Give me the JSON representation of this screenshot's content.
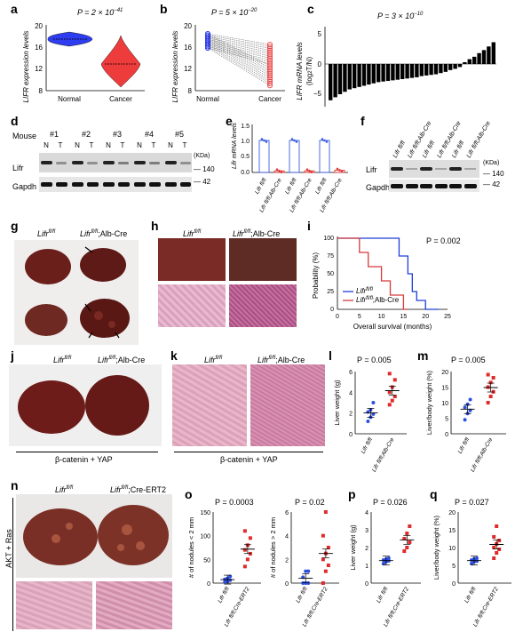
{
  "panels": {
    "a": {
      "label": "a",
      "pval": "P = 2 × 10",
      "pexp": "−41",
      "ylabel": "LIFR expression levels",
      "xticks": [
        "Normal",
        "Cancer"
      ],
      "yticks": [
        "8",
        "12",
        "16",
        "20"
      ]
    },
    "b": {
      "label": "b",
      "pval": "P = 5 × 10",
      "pexp": "−20",
      "ylabel": "LIFR expression levels",
      "xticks": [
        "Normal",
        "Cancer"
      ],
      "yticks": [
        "8",
        "12",
        "16",
        "20"
      ]
    },
    "c": {
      "label": "c",
      "pval": "P = 3 × 10",
      "pexp": "−10",
      "ylabel": "LIFR mRNA levels",
      "ylabel2": "(log",
      "ylabel2b": "2",
      "ylabel2c": "T/N)",
      "yticks": [
        "5",
        "0",
        "−5"
      ]
    },
    "d": {
      "label": "d",
      "mouse_label": "Mouse",
      "mice": [
        "#1",
        "#2",
        "#3",
        "#4",
        "#5"
      ],
      "lanes": [
        "N",
        "T",
        "N",
        "T",
        "N",
        "T",
        "N",
        "T",
        "N",
        "T"
      ],
      "rows": [
        "Lifr",
        "Gapdh"
      ],
      "kda": "(KDa)",
      "markers": [
        "140",
        "42"
      ]
    },
    "e": {
      "label": "e",
      "ylabel": "Lifr mRNA levels",
      "yticks": [
        "0.0",
        "0.5",
        "1.0",
        "1.5"
      ],
      "xticks": [
        "Lifr fl/fl",
        "Lifr fl/fl;Alb-Cre",
        "Lifr fl/fl",
        "Lifr fl/fl;Alb-Cre",
        "Lifr fl/fl",
        "Lifr fl/fl;Alb-Cre"
      ]
    },
    "f": {
      "label": "f",
      "lanes": [
        "Lifr fl/fl",
        "Lifr fl/fl;Alb-Cre",
        "Lifr fl/fl",
        "Lifr fl/fl;Alb-Cre",
        "Lifr fl/fl",
        "Lifr fl/fl;Alb-Cre"
      ],
      "rows": [
        "Lifr",
        "Gapdh"
      ],
      "kda": "(KDa)",
      "markers": [
        "140",
        "42"
      ]
    },
    "g": {
      "label": "g",
      "col1": "Lifr",
      "col1sup": "fl/fl",
      "col2": "Lifr",
      "col2sup": "fl/fl",
      "col2rest": ";Alb-Cre"
    },
    "h": {
      "label": "h",
      "col1": "Lifr",
      "col1sup": "fl/fl",
      "col2": "Lifr",
      "col2sup": "fl/fl",
      "col2rest": ";Alb-Cre"
    },
    "i": {
      "label": "i",
      "pval": "P = 0.002",
      "ylabel": "Probability (%)",
      "xlabel": "Overall survival (months)",
      "yticks": [
        "0",
        "25",
        "50",
        "75",
        "100"
      ],
      "xticks": [
        "0",
        "5",
        "10",
        "15",
        "20",
        "25"
      ],
      "legend": [
        {
          "name": "Lifr",
          "sup": "fl/fl",
          "color": "#1f3fd6"
        },
        {
          "name": "Lifr",
          "sup": "fl/fl",
          "rest": ";Alb-Cre",
          "color": "#d63a3a"
        }
      ]
    },
    "j": {
      "label": "j",
      "col1": "Lifr",
      "col1sup": "fl/fl",
      "col2": "Lifr",
      "col2sup": "fl/fl",
      "col2rest": ";Alb-Cre",
      "caption": "β-catenin + YAP"
    },
    "k": {
      "label": "k",
      "col1": "Lifr",
      "col1sup": "fl/fl",
      "col2": "Lifr",
      "col2sup": "fl/fl",
      "col2rest": ";Alb-Cre",
      "caption": "β-catenin + YAP"
    },
    "l": {
      "label": "l",
      "pval": "P = 0.005",
      "ylabel": "Liver weight (g)",
      "yticks": [
        "0",
        "2",
        "4",
        "6"
      ],
      "xticks": [
        "Lifr fl/fl",
        "Lifr fl/fl;Alb-Cre"
      ]
    },
    "m": {
      "label": "m",
      "pval": "P = 0.005",
      "ylabel": "Liver/body weight (%)",
      "yticks": [
        "0",
        "5",
        "10",
        "15",
        "20"
      ],
      "xticks": [
        "Lifr fl/fl",
        "Lifr fl/fl;Alb-Cre"
      ]
    },
    "n": {
      "label": "n",
      "col1": "Lifr",
      "col1sup": "fl/fl",
      "col2": "Lifr",
      "col2sup": "fl/fl",
      "col2rest": ";Cre-ERT2",
      "side": "AKT + Ras"
    },
    "o": {
      "label": "o",
      "pval1": "P = 0.0003",
      "pval2": "P = 0.02",
      "ylabel1": "# of nodules < 2 mm",
      "ylabel2": "# of nodules > 2 mm",
      "yticks1": [
        "0",
        "50",
        "100",
        "150"
      ],
      "yticks2": [
        "0",
        "2",
        "4",
        "6"
      ],
      "xticks": [
        "Lifr fl/fl",
        "Lifr fl/fl;Cre-ERT2"
      ]
    },
    "p": {
      "label": "p",
      "pval": "P = 0.026",
      "ylabel": "Liver weight (g)",
      "yticks": [
        "0",
        "1",
        "2",
        "3",
        "4"
      ],
      "xticks": [
        "Lifr fl/fl",
        "Lifr fl/fl;Cre-ERT2"
      ]
    },
    "q": {
      "label": "q",
      "pval": "P = 0.027",
      "ylabel": "Liver/body weight (%)",
      "yticks": [
        "0",
        "5",
        "10",
        "15",
        "20"
      ],
      "xticks": [
        "Lifr fl/fl",
        "Lifr fl/fl;Cre-ERT2"
      ]
    }
  },
  "chart_data": [
    {
      "type": "scatter",
      "panel": "l",
      "categories": [
        "Lifr fl/fl",
        "Lifr fl/fl;Alb-Cre"
      ],
      "ylim": [
        0,
        6
      ],
      "series": [
        {
          "values": [
            1.2,
            1.6,
            1.9,
            2.1,
            2.3,
            3.0
          ]
        },
        {
          "values": [
            2.8,
            3.2,
            3.6,
            4.0,
            4.5,
            5.2,
            5.8
          ]
        }
      ]
    },
    {
      "type": "scatter",
      "panel": "m",
      "categories": [
        "Lifr fl/fl",
        "Lifr fl/fl;Alb-Cre"
      ],
      "ylim": [
        0,
        20
      ],
      "series": [
        {
          "values": [
            4.5,
            6.5,
            7.5,
            8.5,
            9.5,
            11
          ]
        },
        {
          "values": [
            10,
            12,
            13.5,
            15,
            16.5,
            18,
            19
          ]
        }
      ]
    },
    {
      "type": "scatter",
      "panel": "o1",
      "categories": [
        "Lifr fl/fl",
        "Lifr fl/fl;Cre-ERT2"
      ],
      "ylim": [
        0,
        150
      ],
      "series": [
        {
          "values": [
            2,
            4,
            6,
            8,
            10,
            14
          ]
        },
        {
          "values": [
            35,
            50,
            62,
            70,
            80,
            95,
            110
          ]
        }
      ]
    },
    {
      "type": "scatter",
      "panel": "o2",
      "categories": [
        "Lifr fl/fl",
        "Lifr fl/fl;Cre-ERT2"
      ],
      "ylim": [
        0,
        6
      ],
      "series": [
        {
          "values": [
            0,
            0,
            0,
            0.5,
            1,
            1
          ]
        },
        {
          "values": [
            0,
            1,
            1.5,
            2,
            2.5,
            3,
            4,
            6
          ]
        }
      ]
    },
    {
      "type": "scatter",
      "panel": "p",
      "categories": [
        "Lifr fl/fl",
        "Lifr fl/fl;Cre-ERT2"
      ],
      "ylim": [
        0,
        4
      ],
      "series": [
        {
          "values": [
            1.1,
            1.2,
            1.25,
            1.3,
            1.35,
            1.4
          ]
        },
        {
          "values": [
            1.8,
            2.0,
            2.3,
            2.5,
            2.8,
            3.2
          ]
        }
      ]
    },
    {
      "type": "scatter",
      "panel": "q",
      "categories": [
        "Lifr fl/fl",
        "Lifr fl/fl;Cre-ERT2"
      ],
      "ylim": [
        0,
        20
      ],
      "series": [
        {
          "values": [
            5.5,
            6,
            6.2,
            6.5,
            6.8,
            7
          ]
        },
        {
          "values": [
            7,
            8.5,
            9.5,
            10,
            11,
            12,
            13,
            16
          ]
        }
      ]
    },
    {
      "type": "bar",
      "panel": "e",
      "categories": [
        "Lifr fl/fl",
        "Lifr fl/fl;Alb-Cre",
        "Lifr fl/fl",
        "Lifr fl/fl;Alb-Cre",
        "Lifr fl/fl",
        "Lifr fl/fl;Alb-Cre"
      ],
      "values": [
        1.0,
        0.05,
        1.0,
        0.05,
        1.0,
        0.07
      ],
      "ylim": [
        0,
        1.5
      ]
    },
    {
      "type": "bar",
      "panel": "c",
      "values": [
        -6,
        -5.5,
        -5,
        -4.6,
        -4.2,
        -4,
        -3.8,
        -3.6,
        -3.4,
        -3.2,
        -3.0,
        -2.9,
        -2.8,
        -2.7,
        -2.6,
        -2.5,
        -2.4,
        -2.3,
        -2.2,
        -2.0,
        -1.9,
        -1.8,
        -1.7,
        -1.5,
        -1.3,
        -1.0,
        -0.8,
        -0.5,
        0.3,
        0.8,
        1.2,
        1.8,
        2.3,
        2.9,
        3.6
      ],
      "ylim": [
        -7,
        6
      ]
    },
    {
      "type": "line",
      "panel": "i",
      "series": [
        {
          "name": "Lifr fl/fl",
          "x": [
            0,
            14,
            14,
            16,
            16,
            17,
            17,
            18,
            18,
            20,
            20,
            23
          ],
          "y": [
            100,
            100,
            75,
            75,
            50,
            50,
            25,
            25,
            12.5,
            12.5,
            0,
            0
          ]
        },
        {
          "name": "Lifr fl/fl;Alb-Cre",
          "x": [
            0,
            5,
            5,
            7,
            7,
            10,
            10,
            12,
            12,
            15,
            15,
            16
          ],
          "y": [
            100,
            100,
            80,
            80,
            60,
            60,
            40,
            40,
            20,
            20,
            0,
            0
          ]
        }
      ],
      "xlim": [
        0,
        25
      ],
      "ylim": [
        0,
        100
      ]
    }
  ]
}
